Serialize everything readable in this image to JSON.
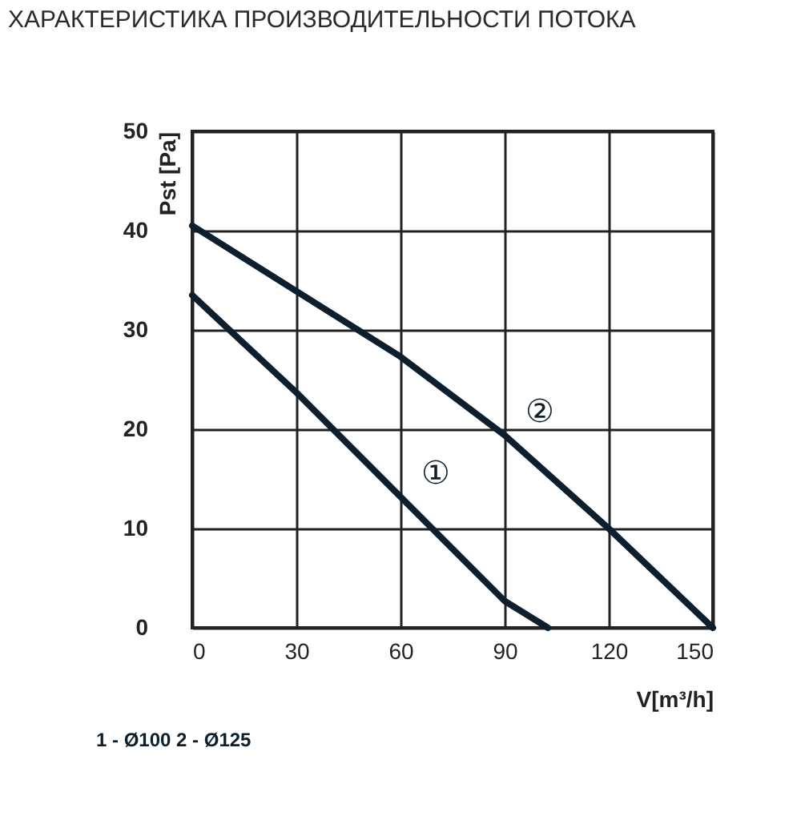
{
  "chart_data": {
    "type": "line",
    "title": "ХАРАКТЕРИСТИКА ПРОИЗВОДИТЕЛЬНОСТИ ПОТОКА",
    "xlabel": "V[m³/h]",
    "ylabel": "Pst [Pa]",
    "series": [
      {
        "name": "②",
        "x": [
          0,
          30,
          60,
          90,
          120,
          150
        ],
        "values": [
          40.5,
          33.9,
          27.3,
          19.4,
          10,
          0
        ],
        "color": "#0d1f2d"
      },
      {
        "name": "①",
        "x": [
          0,
          30,
          60,
          90,
          102.5
        ],
        "values": [
          33.5,
          23.7,
          13.2,
          2.7,
          0
        ],
        "color": "#0d1f2d"
      }
    ],
    "xlim": [
      0,
      150
    ],
    "ylim": [
      0,
      50
    ],
    "xticks": [
      0,
      30,
      60,
      90,
      120,
      150
    ],
    "yticks": [
      0,
      10,
      20,
      30,
      40,
      50
    ],
    "grid": true,
    "annotations": [
      "1 - Ø100    2 - Ø125"
    ]
  }
}
